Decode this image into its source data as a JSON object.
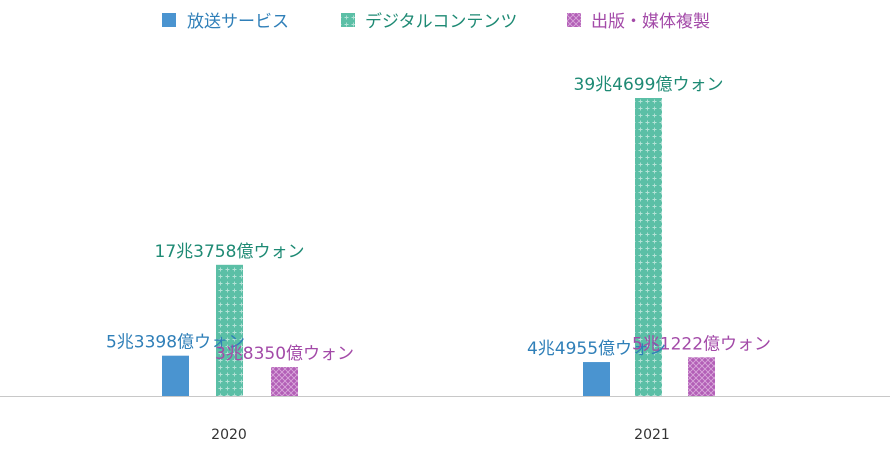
{
  "chart_data": {
    "type": "bar",
    "categories": [
      "2020",
      "2021"
    ],
    "series": [
      {
        "name": "放送サービス",
        "color": "#4a94d0",
        "pattern": "solid",
        "values": [
          53398,
          44955
        ],
        "labels": [
          "5兆3398億ウォン",
          "4兆4955億ウォン"
        ]
      },
      {
        "name": "デジタルコンテンツ",
        "color": "#5bbfa6",
        "pattern": "grid",
        "values": [
          173758,
          394699
        ],
        "labels": [
          "17兆3758億ウォン",
          "39兆4699億ウォン"
        ]
      },
      {
        "name": "出版・媒体複製",
        "color": "#b35fb7",
        "pattern": "crosshatch",
        "values": [
          38350,
          51222
        ],
        "labels": [
          "3兆8350億ウォン",
          "5兆1222億ウォン"
        ]
      }
    ],
    "label_colors": [
      "#2f7fb8",
      "#1e8a74",
      "#a34aa8"
    ],
    "axis_color": "#c8c8c8",
    "legend_position": "top"
  }
}
